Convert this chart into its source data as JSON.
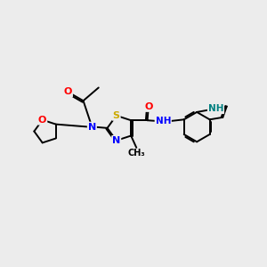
{
  "bg_color": "#ececec",
  "atom_colors": {
    "N": "#0000ff",
    "O": "#ff0000",
    "S": "#ccaa00",
    "NH_indole": "#008080",
    "C": "#000000"
  },
  "bond_color": "#000000",
  "bond_width": 1.4,
  "font_size_atoms": 8,
  "font_size_small": 7.5
}
